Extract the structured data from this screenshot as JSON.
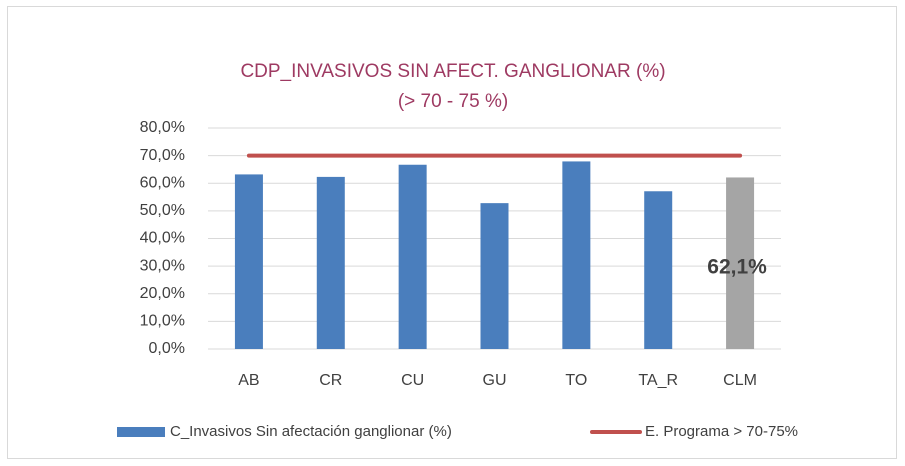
{
  "chart_data": {
    "type": "bar",
    "title": "CDP_INVASIVOS SIN AFECT. GANGLIONAR (%)",
    "subtitle": "(> 70 - 75 %)",
    "categories": [
      "AB",
      "CR",
      "CU",
      "GU",
      "TO",
      "TA_R",
      "CLM"
    ],
    "series": [
      {
        "name": "C_Invasivos Sin afectación ganglionar (%)",
        "type": "bar",
        "color": "#4a7ebd",
        "colors": [
          "#4a7ebd",
          "#4a7ebd",
          "#4a7ebd",
          "#4a7ebd",
          "#4a7ebd",
          "#4a7ebd",
          "#a5a5a5"
        ],
        "values": [
          63.2,
          62.3,
          66.7,
          52.8,
          67.9,
          57.1,
          62.1
        ],
        "value_labels": [
          null,
          null,
          null,
          null,
          null,
          null,
          "62,1%"
        ]
      },
      {
        "name": "E. Programa > 70-75%",
        "type": "line",
        "color": "#c0504d",
        "values": [
          70,
          70,
          70,
          70,
          70,
          70,
          70
        ]
      }
    ],
    "ylim": [
      0,
      80
    ],
    "yticks": [
      {
        "value": 0,
        "label": "0,0%"
      },
      {
        "value": 10,
        "label": "10,0%"
      },
      {
        "value": 20,
        "label": "20,0%"
      },
      {
        "value": 30,
        "label": "30,0%"
      },
      {
        "value": 40,
        "label": "40,0%"
      },
      {
        "value": 50,
        "label": "50,0%"
      },
      {
        "value": 60,
        "label": "60,0%"
      },
      {
        "value": 70,
        "label": "70,0%"
      },
      {
        "value": 80,
        "label": "80,0%"
      }
    ],
    "grid": true,
    "legend": "bottom"
  }
}
